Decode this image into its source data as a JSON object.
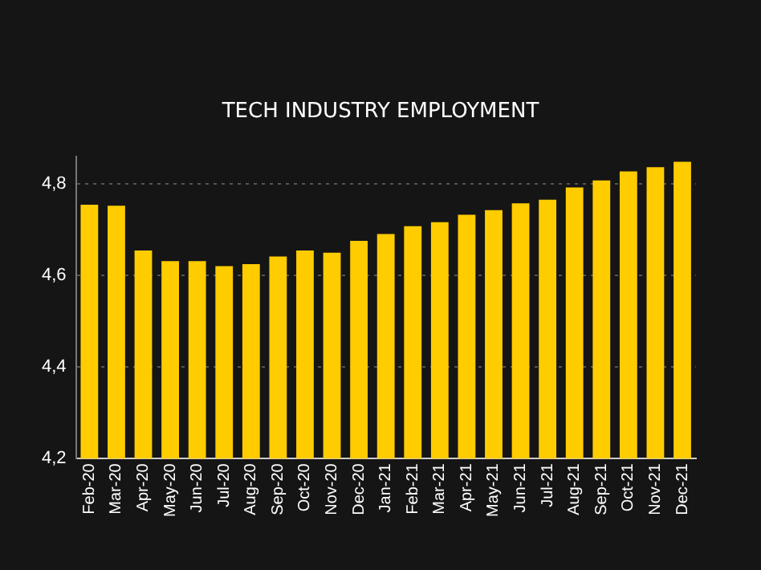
{
  "chart_data": {
    "type": "bar",
    "title": "TECH INDUSTRY EMPLOYMENT",
    "categories": [
      "Feb-20",
      "Mar-20",
      "Apr-20",
      "May-20",
      "Jun-20",
      "Jul-20",
      "Aug-20",
      "Sep-20",
      "Oct-20",
      "Nov-20",
      "Dec-20",
      "Jan-21",
      "Feb-21",
      "Mar-21",
      "Apr-21",
      "May-21",
      "Jun-21",
      "Jul-21",
      "Aug-21",
      "Sep-21",
      "Oct-21",
      "Nov-21",
      "Dec-21"
    ],
    "values": [
      4.755,
      4.753,
      4.655,
      4.632,
      4.632,
      4.621,
      4.625,
      4.642,
      4.655,
      4.65,
      4.676,
      4.691,
      4.708,
      4.717,
      4.733,
      4.743,
      4.758,
      4.766,
      4.793,
      4.808,
      4.828,
      4.837,
      4.849
    ],
    "color": "#ffcc00",
    "ylim": [
      4.2,
      4.86
    ],
    "yticks": [
      {
        "value": 4.2,
        "label": "4,2"
      },
      {
        "value": 4.4,
        "label": "4,4"
      },
      {
        "value": 4.6,
        "label": "4,6"
      },
      {
        "value": 4.8,
        "label": "4,8"
      }
    ],
    "grid": "y",
    "legend": false
  }
}
